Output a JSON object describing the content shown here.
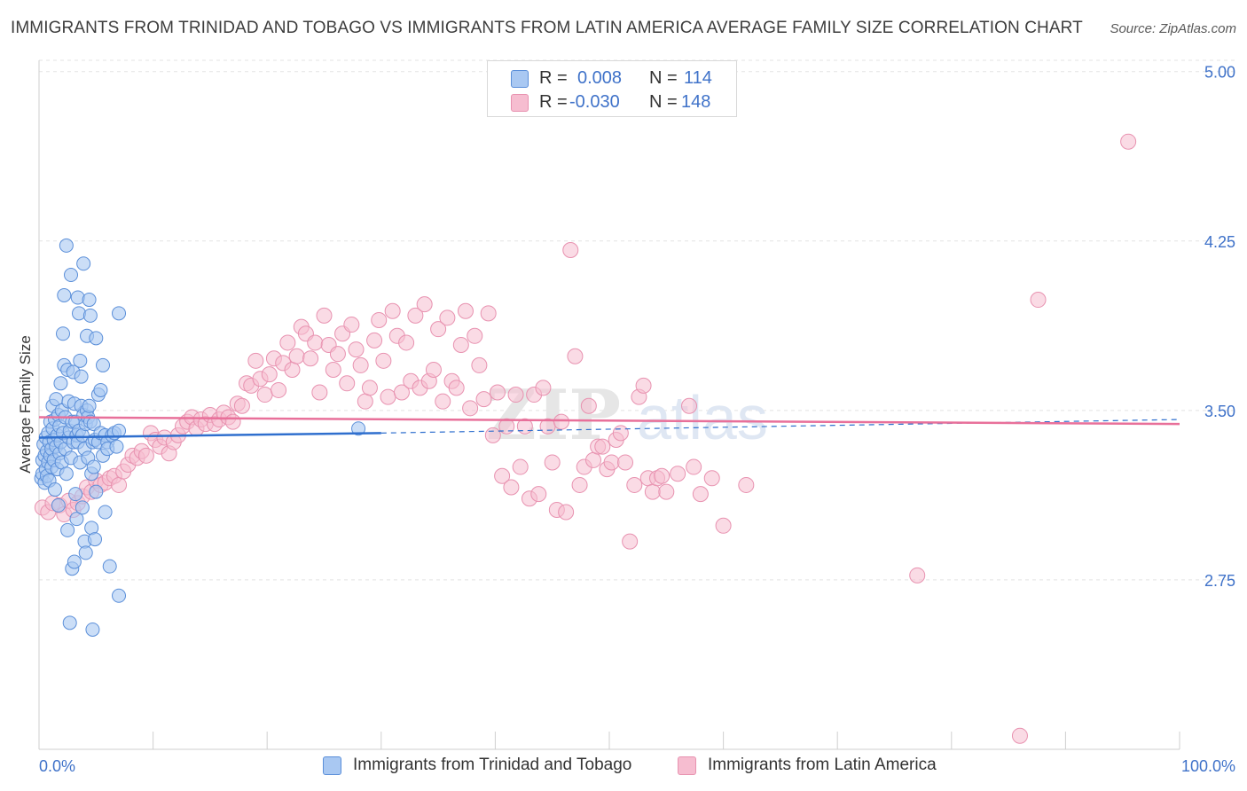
{
  "header": {
    "title": "IMMIGRANTS FROM TRINIDAD AND TOBAGO VS IMMIGRANTS FROM LATIN AMERICA AVERAGE FAMILY SIZE CORRELATION CHART",
    "source": "Source: ZipAtlas.com"
  },
  "legend": {
    "series_a": {
      "r_label": "R =",
      "r_value": "0.008",
      "n_label": "N =",
      "n_value": "114"
    },
    "series_b": {
      "r_label": "R =",
      "r_value": "-0.030",
      "n_label": "N =",
      "n_value": "148"
    }
  },
  "bottom_legend": {
    "series_a": "Immigrants from Trinidad and Tobago",
    "series_b": "Immigrants from Latin America"
  },
  "watermark": {
    "zip": "ZIP",
    "atlas": "atlas"
  },
  "colors": {
    "blue_fill": "#a9c8f2",
    "blue_stroke": "#5b8fd9",
    "blue_line": "#2f6fce",
    "pink_fill": "#f6bdd0",
    "pink_stroke": "#e892b0",
    "pink_line": "#e8709a",
    "tick_text": "#3f72c9",
    "grid": "#e3e3e3"
  },
  "chart_data": {
    "type": "scatter",
    "title": "IMMIGRANTS FROM TRINIDAD AND TOBAGO VS IMMIGRANTS FROM LATIN AMERICA AVERAGE FAMILY SIZE CORRELATION CHART",
    "xlabel": "",
    "ylabel": "Average Family Size",
    "xlim": [
      0,
      100
    ],
    "ylim": [
      2.0,
      5.05
    ],
    "x_tick_labels": [
      "0.0%",
      "100.0%"
    ],
    "y_ticks": [
      2.75,
      3.5,
      4.25,
      5.0
    ],
    "y_tick_labels": [
      "2.75",
      "3.50",
      "4.25",
      "5.00"
    ],
    "grid": true,
    "legend_position": "top-center",
    "series": [
      {
        "name": "Immigrants from Trinidad and Tobago",
        "color": "#5b8fd9",
        "trend": {
          "x0": 0,
          "y0": 3.38,
          "x1": 30,
          "y1": 3.4,
          "dashed_to_x": 100,
          "dashed_to_y": 3.46
        },
        "points": [
          [
            0.2,
            3.2
          ],
          [
            0.3,
            3.22
          ],
          [
            0.3,
            3.28
          ],
          [
            0.4,
            3.35
          ],
          [
            0.5,
            3.18
          ],
          [
            0.5,
            3.3
          ],
          [
            0.6,
            3.24
          ],
          [
            0.6,
            3.38
          ],
          [
            0.7,
            3.32
          ],
          [
            0.7,
            3.21
          ],
          [
            0.8,
            3.4
          ],
          [
            0.8,
            3.27
          ],
          [
            0.9,
            3.36
          ],
          [
            0.9,
            3.19
          ],
          [
            1.0,
            3.45
          ],
          [
            1.0,
            3.3
          ],
          [
            1.1,
            3.33
          ],
          [
            1.1,
            3.25
          ],
          [
            1.2,
            3.42
          ],
          [
            1.2,
            3.52
          ],
          [
            1.3,
            3.37
          ],
          [
            1.3,
            3.28
          ],
          [
            1.4,
            3.46
          ],
          [
            1.4,
            3.15
          ],
          [
            1.5,
            3.34
          ],
          [
            1.5,
            3.55
          ],
          [
            1.6,
            3.39
          ],
          [
            1.6,
            3.24
          ],
          [
            1.7,
            3.48
          ],
          [
            1.7,
            3.08
          ],
          [
            1.8,
            3.31
          ],
          [
            1.8,
            3.43
          ],
          [
            1.9,
            3.36
          ],
          [
            1.9,
            3.62
          ],
          [
            2.0,
            3.27
          ],
          [
            2.0,
            3.5
          ],
          [
            2.1,
            3.84
          ],
          [
            2.1,
            3.4
          ],
          [
            2.2,
            3.7
          ],
          [
            2.2,
            4.01
          ],
          [
            2.3,
            3.33
          ],
          [
            2.3,
            3.47
          ],
          [
            2.4,
            4.23
          ],
          [
            2.4,
            3.22
          ],
          [
            2.5,
            3.68
          ],
          [
            2.5,
            2.97
          ],
          [
            2.6,
            3.38
          ],
          [
            2.6,
            3.54
          ],
          [
            2.7,
            3.41
          ],
          [
            2.7,
            2.56
          ],
          [
            2.8,
            4.1
          ],
          [
            2.8,
            3.29
          ],
          [
            2.9,
            3.45
          ],
          [
            2.9,
            2.8
          ],
          [
            3.0,
            3.36
          ],
          [
            3.0,
            3.67
          ],
          [
            3.1,
            3.53
          ],
          [
            3.1,
            2.83
          ],
          [
            3.2,
            3.45
          ],
          [
            3.2,
            3.13
          ],
          [
            3.3,
            3.02
          ],
          [
            3.3,
            3.39
          ],
          [
            3.4,
            3.36
          ],
          [
            3.4,
            4.0
          ],
          [
            3.5,
            3.93
          ],
          [
            3.5,
            3.41
          ],
          [
            3.6,
            3.72
          ],
          [
            3.6,
            3.27
          ],
          [
            3.7,
            3.52
          ],
          [
            3.7,
            3.65
          ],
          [
            3.8,
            3.39
          ],
          [
            3.8,
            3.07
          ],
          [
            3.9,
            3.48
          ],
          [
            3.9,
            4.15
          ],
          [
            4.0,
            3.33
          ],
          [
            4.0,
            2.92
          ],
          [
            4.1,
            3.44
          ],
          [
            4.1,
            2.87
          ],
          [
            4.2,
            3.83
          ],
          [
            4.2,
            3.5
          ],
          [
            4.3,
            3.47
          ],
          [
            4.3,
            3.29
          ],
          [
            4.4,
            3.99
          ],
          [
            4.4,
            3.52
          ],
          [
            4.5,
            3.45
          ],
          [
            4.5,
            3.92
          ],
          [
            4.6,
            2.98
          ],
          [
            4.6,
            3.22
          ],
          [
            4.7,
            3.36
          ],
          [
            4.7,
            2.53
          ],
          [
            4.8,
            3.25
          ],
          [
            4.8,
            3.44
          ],
          [
            4.9,
            2.93
          ],
          [
            4.9,
            3.37
          ],
          [
            5.0,
            3.82
          ],
          [
            5.0,
            3.14
          ],
          [
            5.2,
            3.57
          ],
          [
            5.2,
            3.36
          ],
          [
            5.4,
            3.59
          ],
          [
            5.4,
            3.4
          ],
          [
            5.6,
            3.7
          ],
          [
            5.6,
            3.3
          ],
          [
            5.8,
            3.39
          ],
          [
            5.8,
            3.05
          ],
          [
            6.0,
            3.36
          ],
          [
            6.0,
            3.33
          ],
          [
            6.2,
            2.81
          ],
          [
            6.4,
            3.39
          ],
          [
            6.6,
            3.4
          ],
          [
            6.8,
            3.34
          ],
          [
            7.0,
            3.41
          ],
          [
            7.0,
            2.68
          ],
          [
            7.0,
            3.93
          ],
          [
            28.0,
            3.42
          ]
        ]
      },
      {
        "name": "Immigrants from Latin America",
        "color": "#e892b0",
        "trend": {
          "x0": 0,
          "y0": 3.47,
          "x1": 100,
          "y1": 3.44
        },
        "points": [
          [
            0.3,
            3.07
          ],
          [
            0.8,
            3.05
          ],
          [
            1.2,
            3.09
          ],
          [
            1.8,
            3.08
          ],
          [
            2.2,
            3.04
          ],
          [
            2.6,
            3.1
          ],
          [
            3.0,
            3.06
          ],
          [
            3.4,
            3.09
          ],
          [
            3.8,
            3.12
          ],
          [
            4.2,
            3.16
          ],
          [
            4.6,
            3.14
          ],
          [
            5.0,
            3.19
          ],
          [
            5.4,
            3.17
          ],
          [
            5.8,
            3.18
          ],
          [
            6.2,
            3.2
          ],
          [
            6.6,
            3.21
          ],
          [
            7.0,
            3.17
          ],
          [
            7.4,
            3.23
          ],
          [
            7.8,
            3.26
          ],
          [
            8.2,
            3.3
          ],
          [
            8.6,
            3.29
          ],
          [
            9.0,
            3.32
          ],
          [
            9.4,
            3.3
          ],
          [
            9.8,
            3.4
          ],
          [
            10.2,
            3.37
          ],
          [
            10.6,
            3.34
          ],
          [
            11.0,
            3.38
          ],
          [
            11.4,
            3.31
          ],
          [
            11.8,
            3.36
          ],
          [
            12.2,
            3.39
          ],
          [
            12.6,
            3.43
          ],
          [
            13.0,
            3.45
          ],
          [
            13.4,
            3.47
          ],
          [
            13.8,
            3.42
          ],
          [
            14.2,
            3.46
          ],
          [
            14.6,
            3.44
          ],
          [
            15.0,
            3.48
          ],
          [
            15.4,
            3.44
          ],
          [
            15.8,
            3.46
          ],
          [
            16.2,
            3.49
          ],
          [
            16.6,
            3.47
          ],
          [
            17.0,
            3.45
          ],
          [
            17.4,
            3.53
          ],
          [
            17.8,
            3.52
          ],
          [
            18.2,
            3.62
          ],
          [
            18.6,
            3.61
          ],
          [
            19.0,
            3.72
          ],
          [
            19.4,
            3.64
          ],
          [
            19.8,
            3.57
          ],
          [
            20.2,
            3.66
          ],
          [
            20.6,
            3.73
          ],
          [
            21.0,
            3.59
          ],
          [
            21.4,
            3.71
          ],
          [
            21.8,
            3.8
          ],
          [
            22.2,
            3.68
          ],
          [
            22.6,
            3.74
          ],
          [
            23.0,
            3.87
          ],
          [
            23.4,
            3.84
          ],
          [
            23.8,
            3.73
          ],
          [
            24.2,
            3.8
          ],
          [
            24.6,
            3.58
          ],
          [
            25.0,
            3.92
          ],
          [
            25.4,
            3.79
          ],
          [
            25.8,
            3.68
          ],
          [
            26.2,
            3.75
          ],
          [
            26.6,
            3.84
          ],
          [
            27.0,
            3.62
          ],
          [
            27.4,
            3.88
          ],
          [
            27.8,
            3.77
          ],
          [
            28.2,
            3.7
          ],
          [
            28.6,
            3.54
          ],
          [
            29.0,
            3.6
          ],
          [
            29.4,
            3.81
          ],
          [
            29.8,
            3.9
          ],
          [
            30.2,
            3.72
          ],
          [
            30.6,
            3.56
          ],
          [
            31.0,
            3.94
          ],
          [
            31.4,
            3.83
          ],
          [
            31.8,
            3.58
          ],
          [
            32.2,
            3.8
          ],
          [
            32.6,
            3.63
          ],
          [
            33.0,
            3.92
          ],
          [
            33.4,
            3.6
          ],
          [
            33.8,
            3.97
          ],
          [
            34.2,
            3.63
          ],
          [
            34.6,
            3.68
          ],
          [
            35.0,
            3.86
          ],
          [
            35.4,
            3.54
          ],
          [
            35.8,
            3.91
          ],
          [
            36.2,
            3.63
          ],
          [
            36.6,
            3.6
          ],
          [
            37.0,
            3.79
          ],
          [
            37.4,
            3.94
          ],
          [
            37.8,
            3.51
          ],
          [
            38.2,
            3.83
          ],
          [
            38.6,
            3.7
          ],
          [
            39.0,
            3.55
          ],
          [
            39.4,
            3.93
          ],
          [
            39.8,
            3.39
          ],
          [
            40.2,
            3.58
          ],
          [
            40.6,
            3.21
          ],
          [
            41.0,
            3.43
          ],
          [
            41.4,
            3.16
          ],
          [
            41.8,
            3.57
          ],
          [
            42.2,
            3.25
          ],
          [
            42.6,
            3.43
          ],
          [
            43.0,
            3.11
          ],
          [
            43.4,
            3.57
          ],
          [
            43.8,
            3.13
          ],
          [
            44.2,
            3.6
          ],
          [
            44.6,
            3.43
          ],
          [
            45.0,
            3.27
          ],
          [
            45.4,
            3.06
          ],
          [
            45.8,
            3.45
          ],
          [
            46.2,
            3.05
          ],
          [
            46.6,
            4.21
          ],
          [
            47.0,
            3.74
          ],
          [
            47.4,
            3.17
          ],
          [
            47.8,
            3.25
          ],
          [
            48.2,
            3.52
          ],
          [
            48.6,
            3.28
          ],
          [
            49.0,
            3.34
          ],
          [
            49.4,
            3.34
          ],
          [
            49.8,
            3.24
          ],
          [
            50.2,
            3.27
          ],
          [
            50.6,
            3.37
          ],
          [
            51.0,
            3.4
          ],
          [
            51.4,
            3.27
          ],
          [
            51.8,
            2.92
          ],
          [
            52.2,
            3.17
          ],
          [
            52.6,
            3.56
          ],
          [
            53.0,
            3.61
          ],
          [
            53.4,
            3.2
          ],
          [
            53.8,
            3.14
          ],
          [
            54.2,
            3.2
          ],
          [
            54.6,
            3.21
          ],
          [
            55.0,
            3.14
          ],
          [
            56.0,
            3.22
          ],
          [
            57.0,
            3.52
          ],
          [
            57.4,
            3.25
          ],
          [
            58.0,
            3.13
          ],
          [
            59.0,
            3.2
          ],
          [
            60.0,
            2.99
          ],
          [
            62.0,
            3.17
          ],
          [
            77.0,
            2.77
          ],
          [
            86.0,
            2.06
          ],
          [
            87.6,
            3.99
          ],
          [
            95.5,
            4.69
          ]
        ]
      }
    ]
  }
}
